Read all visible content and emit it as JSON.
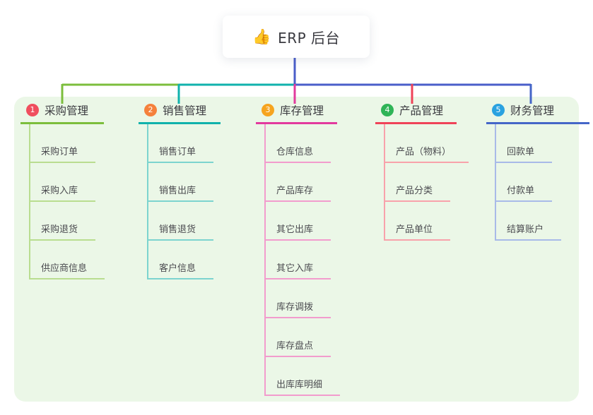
{
  "root": {
    "icon": "👍",
    "label": "ERP 后台"
  },
  "colors": {
    "canvas_bg": "#ffffff",
    "panel_bg": "#ebf7e7",
    "root_line": "#4a5ec9",
    "root_text": "#3a3a40",
    "node_text": "#4b4b50"
  },
  "branches": [
    {
      "index": "1",
      "title": "采购管理",
      "badge_color": "#f04e5e",
      "line_color": "#7cbe3c",
      "child_line_color": "#b9dd90",
      "children": [
        "采购订单",
        "采购入库",
        "采购退货",
        "供应商信息"
      ]
    },
    {
      "index": "2",
      "title": "销售管理",
      "badge_color": "#f5813c",
      "line_color": "#10b2ac",
      "child_line_color": "#7cd4cf",
      "children": [
        "销售订单",
        "销售出库",
        "销售退货",
        "客户信息"
      ]
    },
    {
      "index": "3",
      "title": "库存管理",
      "badge_color": "#f6a41f",
      "line_color": "#e23a9e",
      "child_line_color": "#f29ccd",
      "children": [
        "仓库信息",
        "产品库存",
        "其它出库",
        "其它入库",
        "库存调拨",
        "库存盘点",
        "出库库明细"
      ]
    },
    {
      "index": "4",
      "title": "产品管理",
      "badge_color": "#2fb457",
      "line_color": "#ef4358",
      "child_line_color": "#f8a2ab",
      "children": [
        "产品（物料）",
        "产品分类",
        "产品单位"
      ]
    },
    {
      "index": "5",
      "title": "财务管理",
      "badge_color": "#2aa2e0",
      "line_color": "#4566c8",
      "child_line_color": "#a8bae8",
      "children": [
        "回款单",
        "付款单",
        "结算账户"
      ]
    }
  ]
}
